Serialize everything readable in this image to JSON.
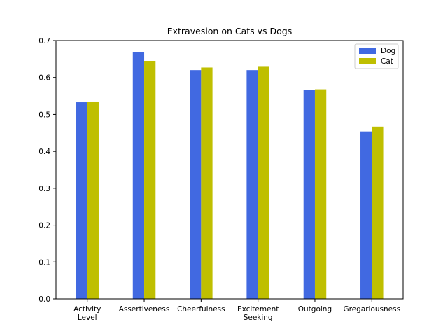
{
  "chart_data": {
    "type": "bar",
    "title": "Extravesion on Cats vs Dogs",
    "xlabel": "",
    "ylabel": "",
    "categories": [
      [
        "Activity",
        "Level"
      ],
      [
        "Assertiveness"
      ],
      [
        "Cheerfulness"
      ],
      [
        "Excitement",
        "Seeking"
      ],
      [
        "Outgoing"
      ],
      [
        "Gregariousness"
      ]
    ],
    "series": [
      {
        "name": "Dog",
        "color": "#4169e1",
        "values": [
          0.533,
          0.668,
          0.62,
          0.62,
          0.566,
          0.454
        ]
      },
      {
        "name": "Cat",
        "color": "#bfbf00",
        "values": [
          0.535,
          0.645,
          0.627,
          0.629,
          0.568,
          0.467
        ]
      }
    ],
    "ylim": [
      0,
      0.7
    ],
    "yticks": [
      "0.0",
      "0.1",
      "0.2",
      "0.3",
      "0.4",
      "0.5",
      "0.6",
      "0.7"
    ],
    "grid": false,
    "legend_position": "top-right"
  }
}
